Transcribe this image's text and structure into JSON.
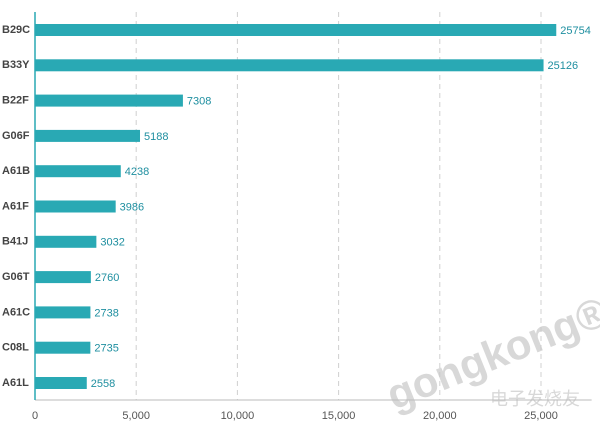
{
  "chart_data": {
    "type": "barh",
    "categories": [
      "B29C",
      "B33Y",
      "B22F",
      "G06F",
      "A61B",
      "A61F",
      "B41J",
      "G06T",
      "A61C",
      "C08L",
      "A61L"
    ],
    "values": [
      25754,
      25126,
      7308,
      5188,
      4238,
      3986,
      3032,
      2760,
      2738,
      2735,
      2558
    ],
    "color": "#29a9b4",
    "xlim": [
      0,
      27500
    ],
    "xticks": [
      0,
      {
        "value": 5000,
        "label": "5,000"
      },
      {
        "value": 10000,
        "label": "10,000"
      },
      {
        "value": 15000,
        "label": "15,000"
      },
      {
        "value": 20000,
        "label": "20,000"
      },
      {
        "value": 25000,
        "label": "25,000"
      }
    ],
    "grid": true,
    "watermark": [
      "gongkong®",
      "电子发烧友"
    ]
  }
}
